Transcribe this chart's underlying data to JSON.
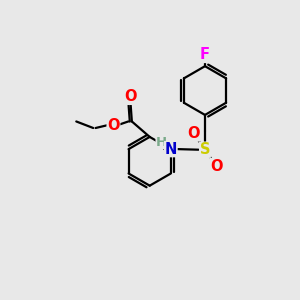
{
  "background_color": "#e8e8e8",
  "atom_colors": {
    "C": "#000000",
    "H": "#7aaa8a",
    "N": "#0000cc",
    "O": "#ff0000",
    "S": "#cccc00",
    "F": "#ff00ff"
  },
  "figsize": [
    3.0,
    3.0
  ],
  "dpi": 100,
  "lw": 1.6,
  "r_ring": 0.82,
  "font_size_atom": 10.5,
  "font_size_H": 9.5
}
